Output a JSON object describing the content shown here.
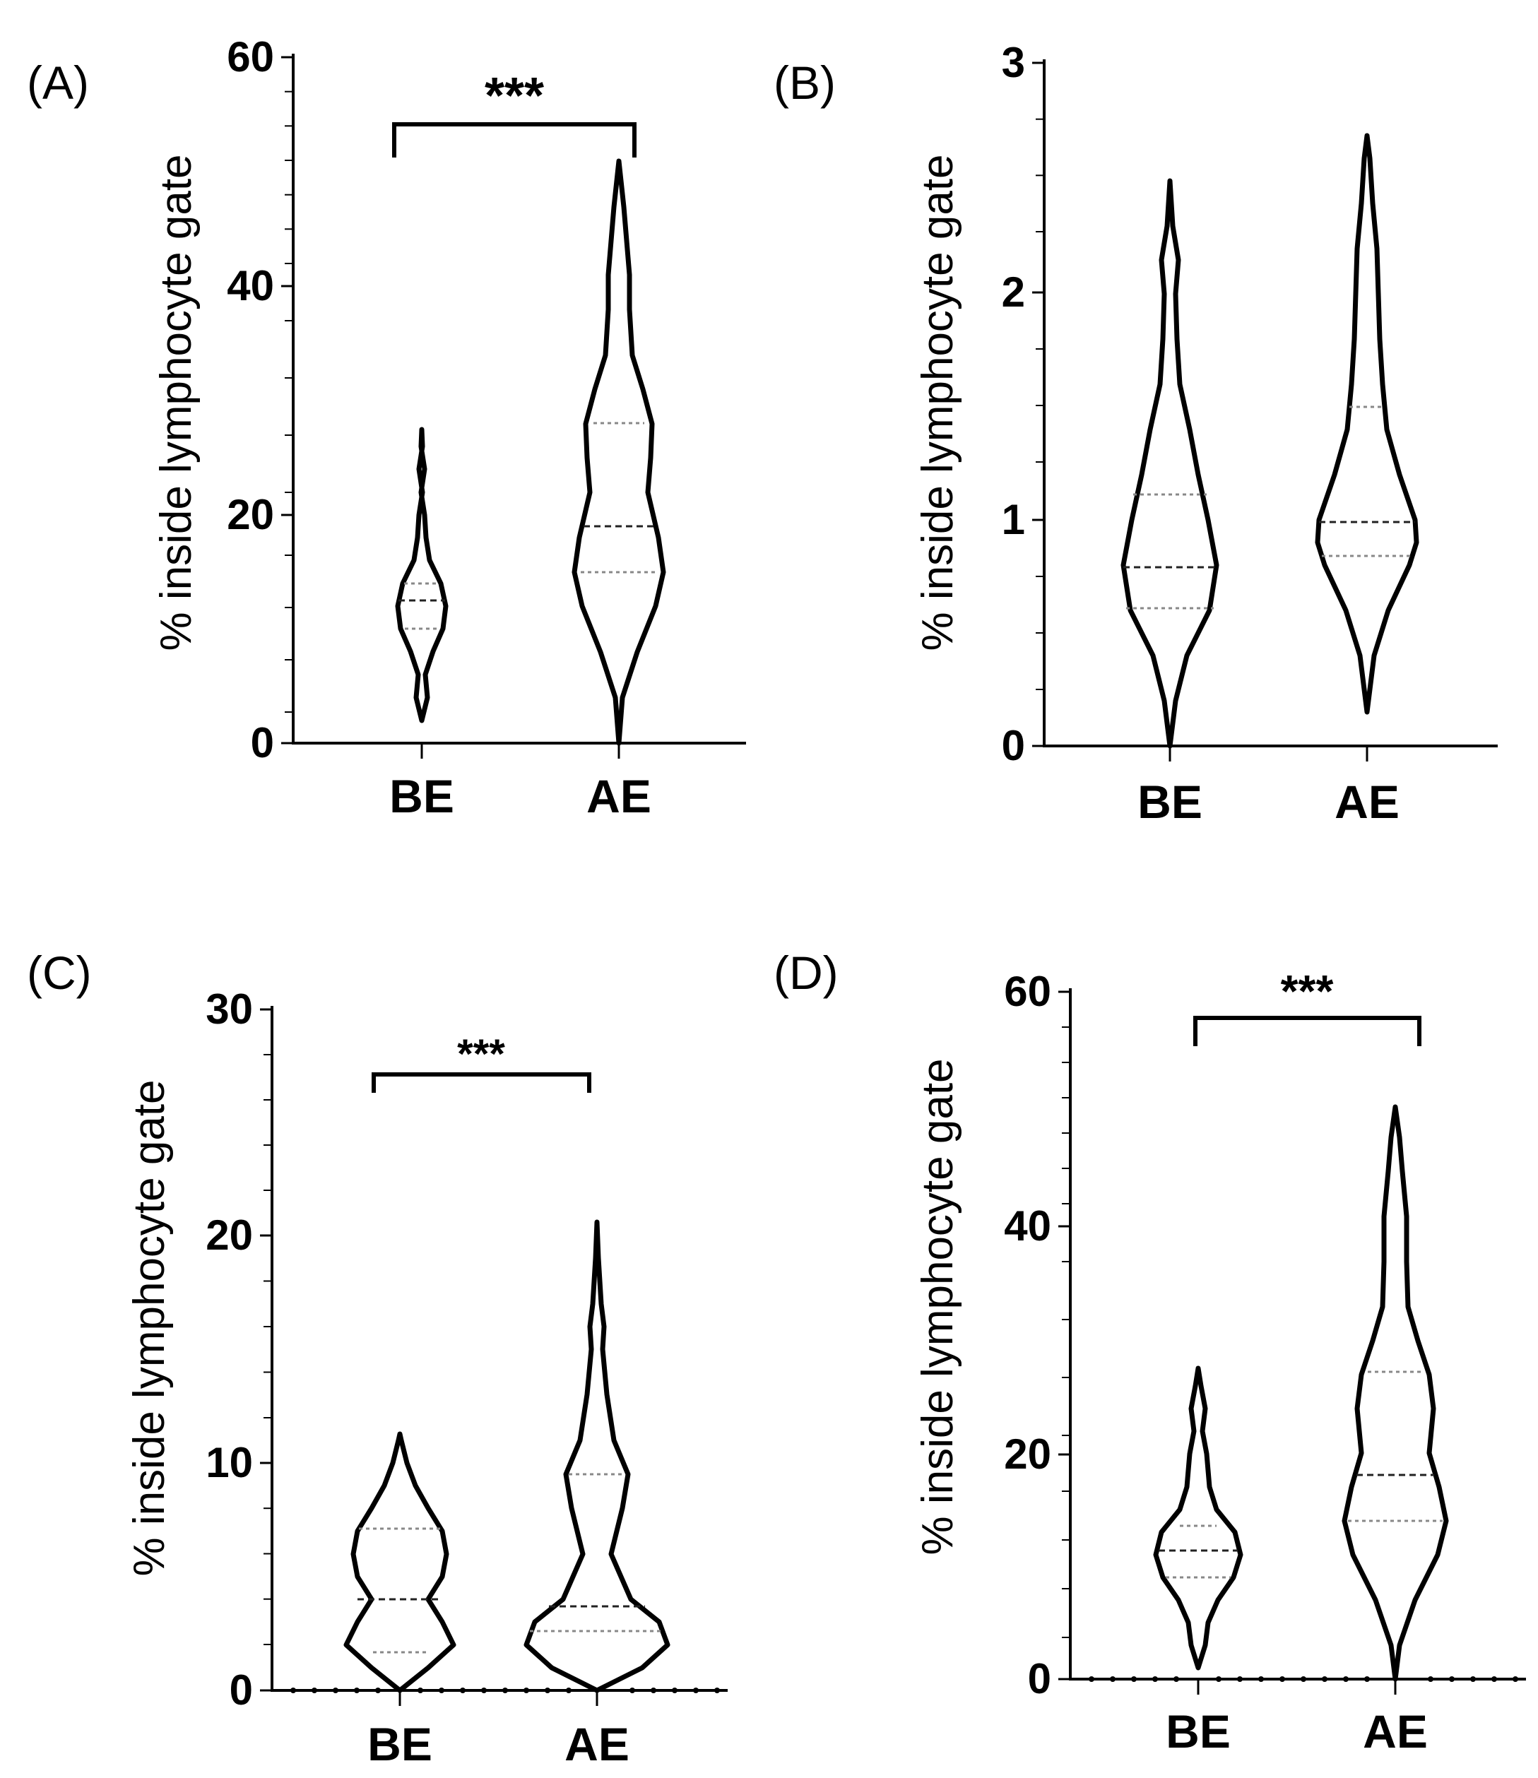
{
  "figure": {
    "panels": [
      {
        "id": "A",
        "label": "(A)",
        "ylabel": "% inside lymphocyte gate",
        "yticks": [
          "0",
          "20",
          "40",
          "60"
        ],
        "ylim": [
          0,
          60
        ],
        "groups": [
          "BE",
          "AE"
        ],
        "significance": "***"
      },
      {
        "id": "B",
        "label": "(B)",
        "ylabel": "% inside lymphocyte gate",
        "yticks": [
          "0",
          "1",
          "2",
          "3"
        ],
        "ylim": [
          0,
          3
        ],
        "groups": [
          "BE",
          "AE"
        ],
        "significance": ""
      },
      {
        "id": "C",
        "label": "(C)",
        "ylabel": "% inside lymphocyte gate",
        "yticks": [
          "0",
          "10",
          "20",
          "30"
        ],
        "ylim": [
          0,
          30
        ],
        "groups": [
          "BE",
          "AE"
        ],
        "significance": "***"
      },
      {
        "id": "D",
        "label": "(D)",
        "ylabel": "% inside lymphocyte gate",
        "yticks": [
          "0",
          "20",
          "40",
          "60"
        ],
        "ylim": [
          0,
          60
        ],
        "groups": [
          "BE",
          "AE"
        ],
        "significance": "***"
      }
    ]
  },
  "chart_data": [
    {
      "type": "violin",
      "title": "(A)",
      "xlabel": "",
      "ylabel": "% inside lymphocyte gate",
      "ylim": [
        0,
        60
      ],
      "categories": [
        "BE",
        "AE"
      ],
      "series": [
        {
          "name": "BE",
          "profile": [
            [
              2,
              0
            ],
            [
              4,
              8
            ],
            [
              6,
              6
            ],
            [
              8,
              12
            ],
            [
              10,
              20
            ],
            [
              12,
              22
            ],
            [
              14,
              18
            ],
            [
              16,
              9
            ],
            [
              18,
              6
            ],
            [
              20,
              5
            ],
            [
              22,
              2
            ],
            [
              24,
              5
            ],
            [
              26,
              2
            ],
            [
              27.5,
              0
            ]
          ],
          "q1": 10,
          "median": 12.5,
          "q3": 14
        },
        {
          "name": "AE",
          "profile": [
            [
              0,
              0
            ],
            [
              4,
              3
            ],
            [
              8,
              14
            ],
            [
              12,
              28
            ],
            [
              15,
              34
            ],
            [
              18,
              30
            ],
            [
              22,
              22
            ],
            [
              25,
              24
            ],
            [
              28,
              25
            ],
            [
              31,
              18
            ],
            [
              34,
              10
            ],
            [
              38,
              8
            ],
            [
              41,
              8
            ],
            [
              44,
              6
            ],
            [
              47,
              4
            ],
            [
              51,
              0
            ]
          ],
          "q1": 15,
          "median": 19,
          "q3": 28
        }
      ],
      "significance": {
        "from": "BE",
        "to": "AE",
        "label": "***",
        "y_bar": 54,
        "y_end": 51.5
      }
    },
    {
      "type": "violin",
      "title": "(B)",
      "xlabel": "",
      "ylabel": "% inside lymphocyte gate",
      "ylim": [
        0,
        3
      ],
      "categories": [
        "BE",
        "AE"
      ],
      "series": [
        {
          "name": "BE",
          "profile": [
            [
              0,
              0
            ],
            [
              0.2,
              4
            ],
            [
              0.4,
              12
            ],
            [
              0.6,
              28
            ],
            [
              0.8,
              33
            ],
            [
              1.0,
              27
            ],
            [
              1.2,
              20
            ],
            [
              1.4,
              14
            ],
            [
              1.6,
              7
            ],
            [
              1.8,
              5
            ],
            [
              2.0,
              4
            ],
            [
              2.15,
              6
            ],
            [
              2.3,
              2
            ],
            [
              2.5,
              0
            ]
          ],
          "q1": 0.61,
          "median": 0.79,
          "q3": 1.11
        },
        {
          "name": "AE",
          "profile": [
            [
              0.15,
              0
            ],
            [
              0.4,
              5
            ],
            [
              0.6,
              15
            ],
            [
              0.8,
              30
            ],
            [
              0.9,
              35
            ],
            [
              1.0,
              34
            ],
            [
              1.2,
              23
            ],
            [
              1.4,
              14
            ],
            [
              1.6,
              11
            ],
            [
              1.8,
              9
            ],
            [
              2.0,
              8
            ],
            [
              2.2,
              7
            ],
            [
              2.4,
              4
            ],
            [
              2.6,
              2
            ],
            [
              2.7,
              0
            ]
          ],
          "q1": 0.84,
          "median": 0.99,
          "q3": 1.5
        }
      ]
    },
    {
      "type": "violin",
      "title": "(C)",
      "xlabel": "",
      "ylabel": "% inside lymphocyte gate",
      "ylim": [
        0,
        30
      ],
      "categories": [
        "BE",
        "AE"
      ],
      "series": [
        {
          "name": "BE",
          "profile": [
            [
              0,
              0
            ],
            [
              1,
              20
            ],
            [
              2,
              38
            ],
            [
              3,
              30
            ],
            [
              4,
              20
            ],
            [
              5,
              30
            ],
            [
              6,
              33
            ],
            [
              7,
              30
            ],
            [
              8,
              20
            ],
            [
              9,
              11
            ],
            [
              10,
              5
            ],
            [
              11,
              1
            ],
            [
              11.3,
              0
            ]
          ],
          "q1": 1.7,
          "median": 4,
          "q3": 7.1
        },
        {
          "name": "AE",
          "profile": [
            [
              0,
              0
            ],
            [
              1,
              32
            ],
            [
              2,
              50
            ],
            [
              3,
              44
            ],
            [
              4,
              24
            ],
            [
              6,
              10
            ],
            [
              8,
              18
            ],
            [
              9.5,
              22
            ],
            [
              11,
              12
            ],
            [
              13,
              7
            ],
            [
              15,
              4
            ],
            [
              16,
              5
            ],
            [
              17,
              3
            ],
            [
              19,
              1
            ],
            [
              20.6,
              0
            ]
          ],
          "q1": 2.6,
          "median": 3.7,
          "q3": 9.5
        }
      ],
      "significance": {
        "from": "BE",
        "to": "AE",
        "label": "***",
        "y_bar": 27,
        "y_end": 25.8
      }
    },
    {
      "type": "violin",
      "title": "(D)",
      "xlabel": "",
      "ylabel": "% inside lymphocyte gate",
      "ylim": [
        0,
        60
      ],
      "categories": [
        "BE",
        "AE"
      ],
      "series": [
        {
          "name": "BE",
          "profile": [
            [
              1,
              0
            ],
            [
              3,
              5
            ],
            [
              5,
              7
            ],
            [
              7,
              14
            ],
            [
              9,
              25
            ],
            [
              11,
              30
            ],
            [
              13,
              26
            ],
            [
              15,
              13
            ],
            [
              17,
              8
            ],
            [
              20,
              6
            ],
            [
              22,
              3
            ],
            [
              24,
              5
            ],
            [
              26,
              2
            ],
            [
              27.5,
              0
            ]
          ],
          "q1": 9,
          "median": 11.5,
          "q3": 13.5
        },
        {
          "name": "AE",
          "profile": [
            [
              0,
              0
            ],
            [
              3,
              3
            ],
            [
              7,
              14
            ],
            [
              11,
              30
            ],
            [
              14,
              36
            ],
            [
              17,
              31
            ],
            [
              20,
              24
            ],
            [
              24,
              27
            ],
            [
              27,
              24
            ],
            [
              30,
              16
            ],
            [
              33,
              9
            ],
            [
              37,
              8
            ],
            [
              41,
              8
            ],
            [
              45,
              5
            ],
            [
              48,
              3
            ],
            [
              50.5,
              0
            ]
          ],
          "q1": 14,
          "median": 18,
          "q3": 26.8
        }
      ],
      "significance": {
        "from": "BE",
        "to": "AE",
        "label": "***",
        "y_bar": 58.4,
        "y_end": 56
      }
    }
  ]
}
